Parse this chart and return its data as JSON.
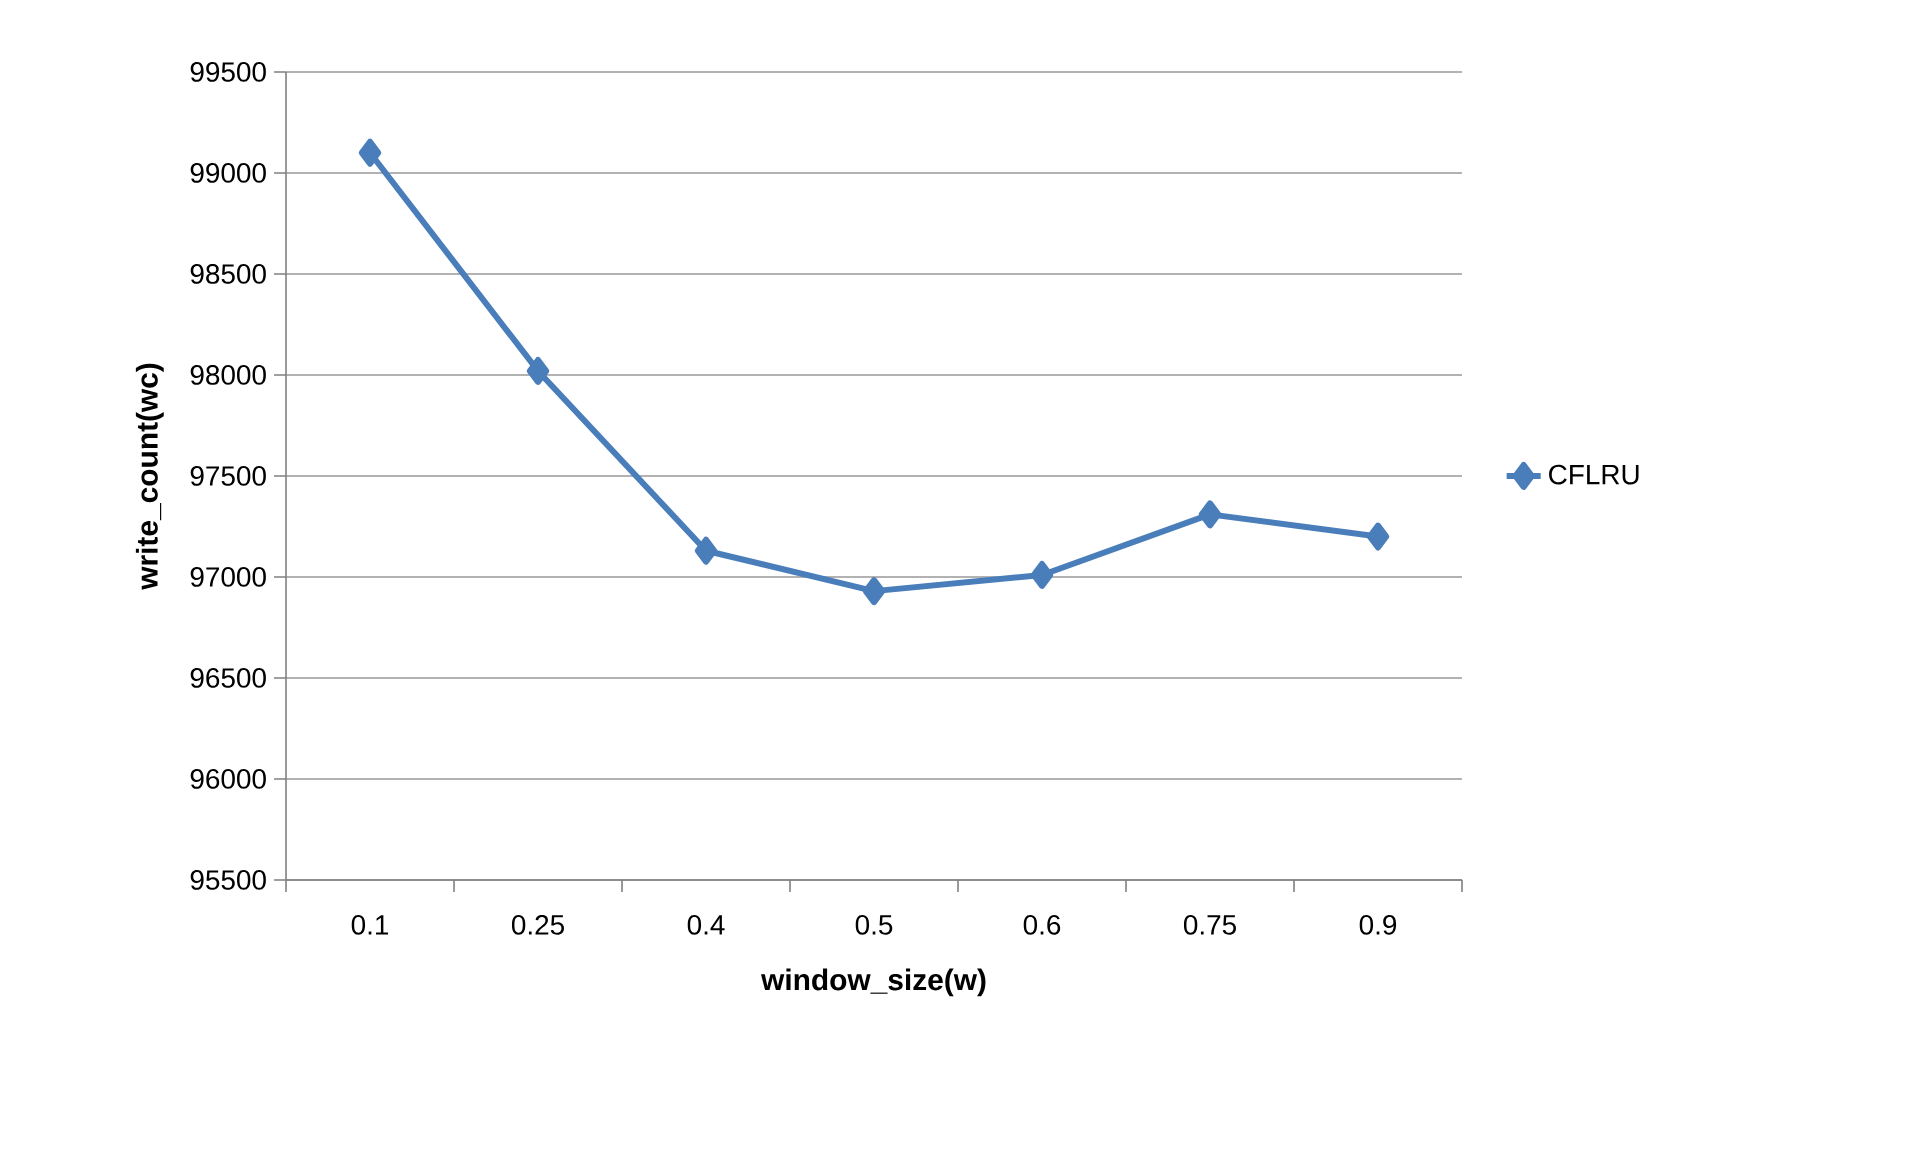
{
  "chart_data": {
    "type": "line",
    "xlabel": "window_size(w)",
    "ylabel": "write_count(wc)",
    "categories": [
      "0.1",
      "0.25",
      "0.4",
      "0.5",
      "0.6",
      "0.75",
      "0.9"
    ],
    "series": [
      {
        "name": "CFLRU",
        "color": "#4a7ebb",
        "values": [
          99100,
          98020,
          97130,
          96930,
          97010,
          97310,
          97200
        ]
      }
    ],
    "ylim": [
      95500,
      99500
    ],
    "yticks": [
      95500,
      96000,
      96500,
      97000,
      97500,
      98000,
      98500,
      99000,
      99500
    ],
    "grid": "y",
    "legend": "right",
    "marker": "diamond",
    "line_style": "solid"
  }
}
